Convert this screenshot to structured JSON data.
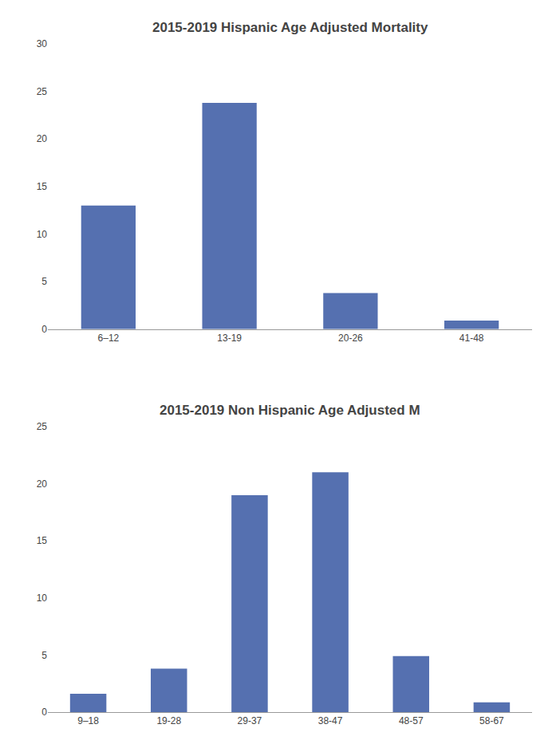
{
  "chart_data": [
    {
      "type": "bar",
      "title": "2015-2019 Hispanic Age Adjusted Mortality",
      "categories": [
        "6–12",
        "13-19",
        "20-26",
        "41-48"
      ],
      "values": [
        13.0,
        23.8,
        3.8,
        0.9
      ],
      "color": "#5570b0",
      "ylim": [
        0,
        30
      ],
      "yticks": [
        0,
        5,
        10,
        15,
        20,
        25,
        30
      ],
      "grid": false
    },
    {
      "type": "bar",
      "title": "2015-2019 Non Hispanic Age Adjusted M",
      "categories": [
        "9–18",
        "19-28",
        "29-37",
        "38-47",
        "48-57",
        "58-67"
      ],
      "values": [
        1.6,
        3.8,
        19.0,
        21.0,
        4.9,
        0.85
      ],
      "color": "#5570b0",
      "ylim": [
        0,
        25
      ],
      "yticks": [
        0,
        5,
        10,
        15,
        20,
        25
      ],
      "grid": false
    }
  ]
}
